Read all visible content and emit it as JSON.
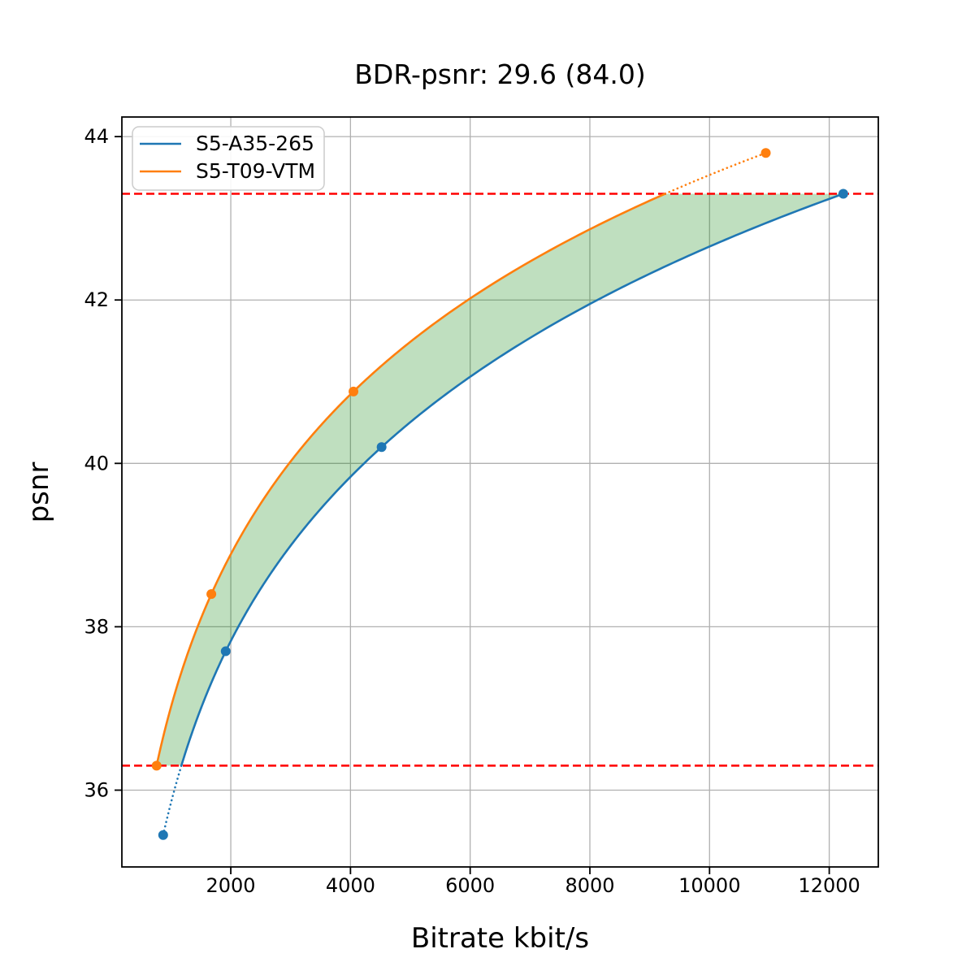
{
  "chart_data": {
    "type": "line",
    "title": "BDR-psnr: 29.6 (84.0)",
    "bdr_value": "29.6",
    "overlap_percent": "84.0",
    "xlabel": "Bitrate kbit/s",
    "ylabel": "psnr",
    "xlim": [
      180,
      12820
    ],
    "ylim": [
      35.06,
      44.24
    ],
    "xticks": [
      2000,
      4000,
      6000,
      8000,
      10000,
      12000
    ],
    "yticks": [
      36,
      38,
      40,
      42,
      44
    ],
    "grid": true,
    "legend_position": "upper-left",
    "series": [
      {
        "name": "S5-A35-265",
        "color": "#1f77b4",
        "points": [
          [
            870,
            35.45
          ],
          [
            1915,
            37.7
          ],
          [
            4520,
            40.2
          ],
          [
            12235,
            43.3
          ]
        ]
      },
      {
        "name": "S5-T09-VTM",
        "color": "#ff7f0e",
        "points": [
          [
            760,
            36.3
          ],
          [
            1675,
            38.4
          ],
          [
            4050,
            40.88
          ],
          [
            10940,
            43.8
          ]
        ]
      }
    ],
    "overlap": {
      "lower": 36.3,
      "upper": 43.3,
      "color": "#ff0000",
      "style": "dashed"
    },
    "shaded_region": {
      "between": [
        "S5-T09-VTM",
        "S5-A35-265"
      ],
      "psnr_range": [
        36.3,
        43.3
      ],
      "color": "#008000",
      "opacity": 0.25
    },
    "colors": {
      "grid": "#b0b0b0",
      "spine": "#000000",
      "tick_text": "#000000",
      "legend_border": "#cccccc",
      "legend_bg": "#ffffff"
    }
  }
}
